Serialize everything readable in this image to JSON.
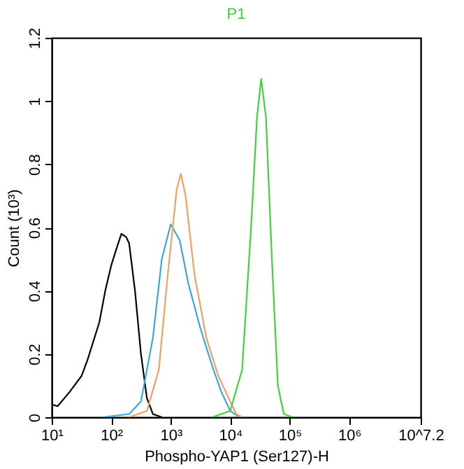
{
  "chart_data": {
    "type": "line",
    "title": "P1",
    "xlabel": "Phospho-YAP1 (Ser127)-H",
    "ylabel": "Count (10³)",
    "log": "x",
    "grid": false,
    "marker": "none",
    "line_style": "solid",
    "xlim": [
      10,
      15848932
    ],
    "xticks": [
      {
        "value": 10,
        "label": "10¹"
      },
      {
        "value": 100,
        "label": "10²"
      },
      {
        "value": 1000,
        "label": "10³"
      },
      {
        "value": 10000,
        "label": "10⁴"
      },
      {
        "value": 100000,
        "label": "10⁵"
      },
      {
        "value": 1000000,
        "label": "10⁶"
      },
      {
        "value": 15848932,
        "label": "10^7.2"
      }
    ],
    "ylim": [
      0,
      1.2
    ],
    "yticks": [
      0,
      0.2,
      0.4,
      0.6,
      0.8,
      1,
      1.2
    ],
    "series": [
      {
        "color": "#000000",
        "x": [
          10,
          12.6,
          20,
          31.6,
          39.8,
          63.1,
          79.4,
          100,
          126,
          148,
          178,
          200,
          251,
          316,
          398,
          501,
          708
        ],
        "values": [
          0.04,
          0.035,
          0.08,
          0.13,
          0.18,
          0.3,
          0.4,
          0.48,
          0.54,
          0.58,
          0.57,
          0.55,
          0.4,
          0.2,
          0.06,
          0.01,
          0
        ]
      },
      {
        "color": "#3aa8d8",
        "x": [
          70.8,
          200,
          316,
          501,
          708,
          1000,
          1413,
          1995,
          3162,
          5012,
          7079,
          10000,
          14125
        ],
        "values": [
          0,
          0.01,
          0.05,
          0.25,
          0.5,
          0.61,
          0.56,
          0.42,
          0.28,
          0.16,
          0.08,
          0.02,
          0
        ]
      },
      {
        "color": "#f0a060",
        "x": [
          200,
          398,
          631,
          891,
          1259,
          1479,
          1778,
          2512,
          3981,
          6310,
          8913,
          12589,
          15849
        ],
        "values": [
          0,
          0.02,
          0.15,
          0.45,
          0.72,
          0.77,
          0.7,
          0.45,
          0.25,
          0.13,
          0.07,
          0.01,
          0
        ]
      },
      {
        "color": "#40d040",
        "x": [
          5012,
          10000,
          15849,
          22387,
          28184,
          33113,
          39811,
          50119,
          63096,
          79433,
          112202
        ],
        "values": [
          0,
          0.02,
          0.15,
          0.6,
          0.95,
          1.07,
          0.95,
          0.5,
          0.1,
          0.01,
          0
        ]
      }
    ]
  }
}
